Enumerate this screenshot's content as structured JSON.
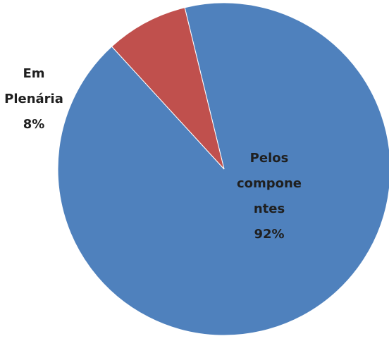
{
  "chart_data": {
    "type": "pie",
    "title": "",
    "slices": [
      {
        "name_lines": [
          "Pelos",
          "compone",
          "ntes"
        ],
        "percent_label": "92%",
        "value": 92,
        "color": "#4f81bd"
      },
      {
        "name_lines": [
          "Em",
          "Plenária"
        ],
        "percent_label": "8%",
        "value": 8,
        "color": "#c0504d"
      }
    ],
    "legend": "none",
    "start_slice_label": "Em Plenária"
  }
}
